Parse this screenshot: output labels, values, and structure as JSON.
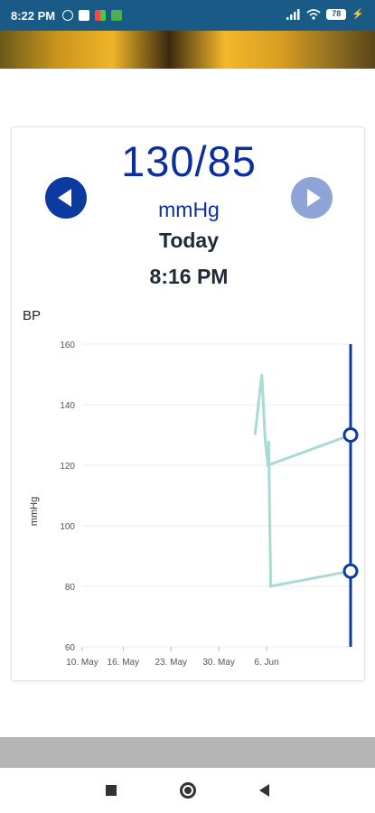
{
  "status_bar": {
    "time": "8:22 PM",
    "battery": "78"
  },
  "reading": {
    "value": "130/85",
    "unit": "mmHg",
    "day": "Today",
    "time": "8:16 PM"
  },
  "chart": {
    "title": "BP"
  },
  "chart_data": {
    "type": "line",
    "title": "BP",
    "xlabel": "",
    "ylabel": "mmHg",
    "ylim": [
      60,
      160
    ],
    "yticks": [
      60,
      80,
      100,
      120,
      140,
      160
    ],
    "xticks": [
      "10. May",
      "16. May",
      "23. May",
      "30. May",
      "6. Jun"
    ],
    "xtick_days": [
      0,
      6,
      13,
      20,
      27
    ],
    "series": [
      {
        "values": [
          [
            25.3,
            130
          ],
          [
            26.3,
            150
          ],
          [
            26.8,
            128
          ],
          [
            27.2,
            120
          ],
          [
            39.3,
            130
          ]
        ]
      },
      {
        "values": [
          [
            27.3,
            128
          ],
          [
            27.6,
            80
          ],
          [
            39.3,
            85
          ]
        ]
      }
    ],
    "selected_day": 39.3,
    "colors": {
      "line": "#a8dad6",
      "cursor": "#0b3aa0",
      "grid": "#ebebeb"
    }
  },
  "colors": {
    "accent": "#0b2f9f",
    "status_bar": "#1a5a86"
  }
}
